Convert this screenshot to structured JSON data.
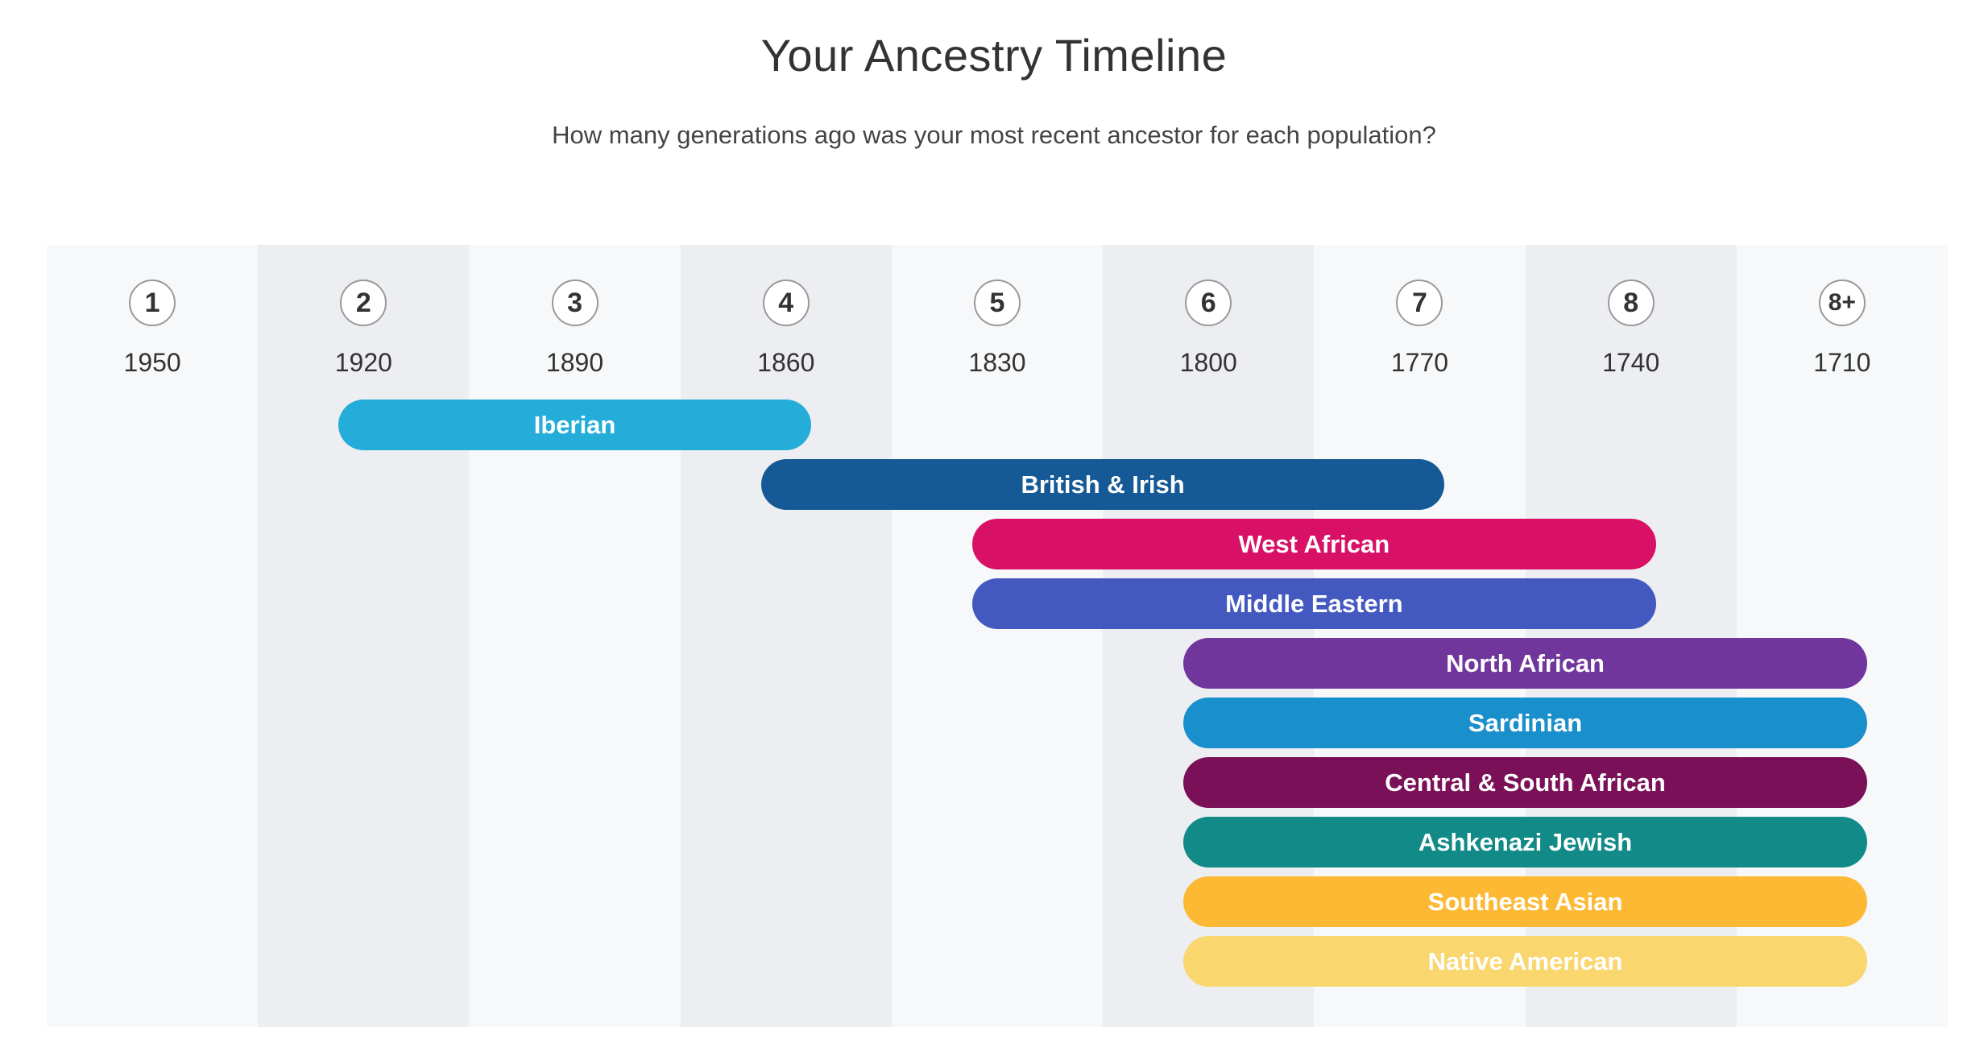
{
  "chart_data": {
    "type": "timeline",
    "title": "Your Ancestry Timeline",
    "subtitle": "How many generations ago was your most recent ancestor for each population?",
    "generations": [
      "1",
      "2",
      "3",
      "4",
      "5",
      "6",
      "7",
      "8",
      "8+"
    ],
    "years": [
      "1950",
      "1920",
      "1890",
      "1860",
      "1830",
      "1800",
      "1770",
      "1740",
      "1710"
    ],
    "column_colors": {
      "light": "#F6F8FA",
      "dark": "#ECEEF1"
    },
    "series": [
      {
        "name": "Iberian",
        "start": "2",
        "end": "4",
        "color": "#24ADD9"
      },
      {
        "name": "British & Irish",
        "start": "4",
        "end": "7",
        "color": "#155A96"
      },
      {
        "name": "West African",
        "start": "5",
        "end": "8",
        "color": "#D81167"
      },
      {
        "name": "Middle Eastern",
        "start": "5",
        "end": "8",
        "color": "#4459C0"
      },
      {
        "name": "North African",
        "start": "6",
        "end": "8+",
        "color": "#71369C"
      },
      {
        "name": "Sardinian",
        "start": "6",
        "end": "8+",
        "color": "#198FCB"
      },
      {
        "name": "Central & South African",
        "start": "6",
        "end": "8+",
        "color": "#7A1158"
      },
      {
        "name": "Ashkenazi Jewish",
        "start": "6",
        "end": "8+",
        "color": "#128B88"
      },
      {
        "name": "Southeast Asian",
        "start": "6",
        "end": "8+",
        "color": "#FDB933"
      },
      {
        "name": "Native American",
        "start": "6",
        "end": "8+",
        "color": "#F9D66E"
      }
    ]
  }
}
